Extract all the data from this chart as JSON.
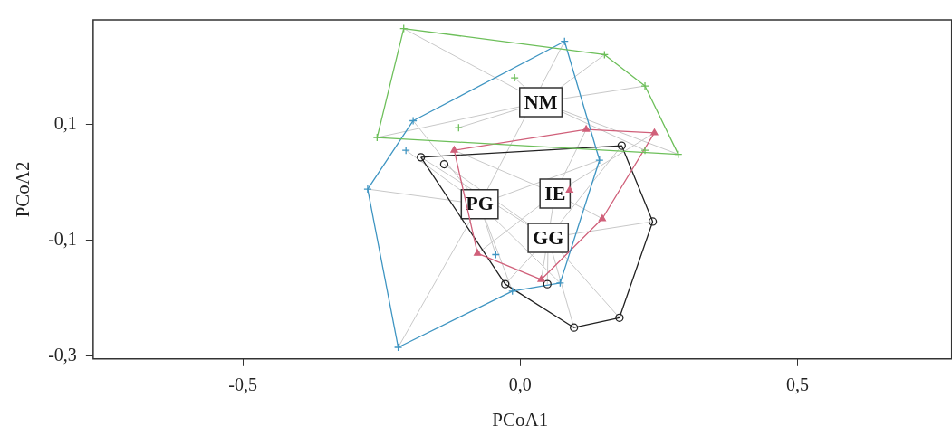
{
  "chart_data": {
    "type": "scatter",
    "xlabel": "PCoA1",
    "ylabel": "PCoA2",
    "xlim": [
      -0.77,
      0.77
    ],
    "ylim": [
      -0.305,
      0.28
    ],
    "xticks": [
      {
        "value": -0.5,
        "label": "-0,5"
      },
      {
        "value": 0,
        "label": "0,0"
      },
      {
        "value": 0.5,
        "label": "0,5"
      }
    ],
    "yticks": [
      {
        "value": -0.3,
        "label": "-0,3"
      },
      {
        "value": -0.1,
        "label": "-0,1"
      },
      {
        "value": 0.1,
        "label": "0,1"
      }
    ],
    "grid": false,
    "legend": false,
    "series": [
      {
        "name": "NM",
        "color": "#6dbf5a",
        "marker": "cross",
        "x": [
          -0.21,
          0.152,
          0.225,
          0.285,
          -0.258,
          -0.01,
          -0.111,
          0.225
        ],
        "values": [
          0.265,
          0.22,
          0.166,
          0.048,
          0.077,
          0.18,
          0.094,
          0.055
        ]
      },
      {
        "name": "PG",
        "color": "#3f95c2",
        "marker": "cross",
        "x": [
          0.08,
          0.143,
          0.072,
          -0.014,
          -0.22,
          -0.275,
          -0.193,
          -0.206,
          -0.044
        ],
        "values": [
          0.243,
          0.038,
          -0.174,
          -0.188,
          -0.285,
          -0.012,
          0.106,
          0.055,
          -0.125
        ]
      },
      {
        "name": "IE",
        "color": "#d0607a",
        "marker": "triangle",
        "x": [
          0.119,
          0.242,
          -0.119,
          -0.077,
          0.038,
          0.148,
          0.089
        ],
        "values": [
          0.091,
          0.085,
          0.055,
          -0.123,
          -0.168,
          -0.063,
          -0.014
        ]
      },
      {
        "name": "GG",
        "color": "#222222",
        "marker": "circle",
        "x": [
          -0.179,
          0.183,
          0.239,
          0.179,
          0.097,
          0.049,
          -0.027,
          -0.137
        ],
        "values": [
          0.043,
          0.063,
          -0.068,
          -0.234,
          -0.251,
          -0.176,
          -0.176,
          0.031
        ]
      },
      {
        "type": "line",
        "color": "#6dbf5a",
        "marker": "none",
        "x": [
          -0.258,
          -0.21,
          0.152,
          0.225,
          0.285
        ],
        "values": [
          0.077,
          0.265,
          0.22,
          0.166,
          0.048
        ]
      },
      {
        "type": "line",
        "color": "#6dbf5a",
        "marker": "none",
        "x": [
          -0.258,
          0.285
        ],
        "values": [
          0.077,
          0.048
        ]
      },
      {
        "type": "line",
        "color": "#3f95c2",
        "marker": "none",
        "x": [
          -0.275,
          -0.193,
          0.08,
          0.143
        ],
        "values": [
          -0.012,
          0.106,
          0.243,
          0.038
        ]
      },
      {
        "type": "line",
        "color": "#3f95c2",
        "marker": "none",
        "x": [
          -0.275,
          -0.22,
          -0.014,
          0.072,
          0.143
        ],
        "values": [
          -0.012,
          -0.285,
          -0.188,
          -0.174,
          0.038
        ]
      },
      {
        "type": "line",
        "color": "#d0607a",
        "marker": "none",
        "x": [
          -0.119,
          0.119,
          0.242
        ],
        "values": [
          0.055,
          0.091,
          0.085
        ]
      },
      {
        "type": "line",
        "color": "#d0607a",
        "marker": "none",
        "x": [
          -0.119,
          -0.077,
          0.038,
          0.148,
          0.242
        ],
        "values": [
          0.055,
          -0.123,
          -0.168,
          -0.063,
          0.085
        ]
      },
      {
        "type": "line",
        "color": "#222222",
        "marker": "none",
        "x": [
          -0.179,
          0.183,
          0.239
        ],
        "values": [
          0.043,
          0.063,
          -0.068
        ]
      },
      {
        "type": "line",
        "color": "#222222",
        "marker": "none",
        "x": [
          -0.179,
          -0.027,
          0.097,
          0.179,
          0.239
        ],
        "values": [
          0.043,
          -0.176,
          -0.251,
          -0.234,
          -0.068
        ]
      }
    ]
  }
}
